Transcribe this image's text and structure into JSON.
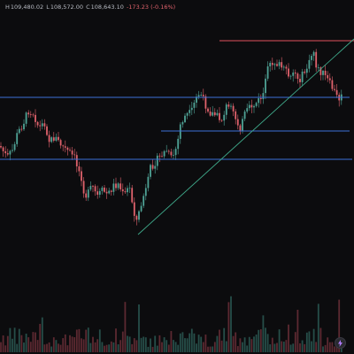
{
  "ohlc": {
    "high_label": "H",
    "high": "109,480.02",
    "low_label": "L",
    "low": "108,572.00",
    "close_label": "C",
    "close": "108,643.10",
    "change": "-173.23 (-0.16%)"
  },
  "colors": {
    "background": "#0c0c0e",
    "up": "#4fa396",
    "down": "#e0626c",
    "horizontal_line": "#3d6fd8",
    "resistance_line": "#e0525c",
    "trend_line": "#3fa98a"
  },
  "icons": {
    "replay": "bolt-icon"
  },
  "chart_data": {
    "type": "candlestick",
    "title": "",
    "xlabel": "",
    "ylabel": "",
    "grid": false,
    "price_range": [
      30,
      252
    ],
    "candles": [],
    "volume": [],
    "drawings": {
      "horizontal_lines": [
        {
          "price": 110,
          "color": "blue"
        },
        {
          "price": 148,
          "color": "blue"
        },
        {
          "price": 180,
          "color": "blue"
        }
      ],
      "resistance_line": {
        "price": 46,
        "color": "red",
        "from_index": 90
      },
      "trend_line": {
        "from": {
          "index": 59,
          "price": 265
        },
        "to": {
          "index": 153,
          "price": 44
        },
        "color": "green"
      }
    }
  }
}
